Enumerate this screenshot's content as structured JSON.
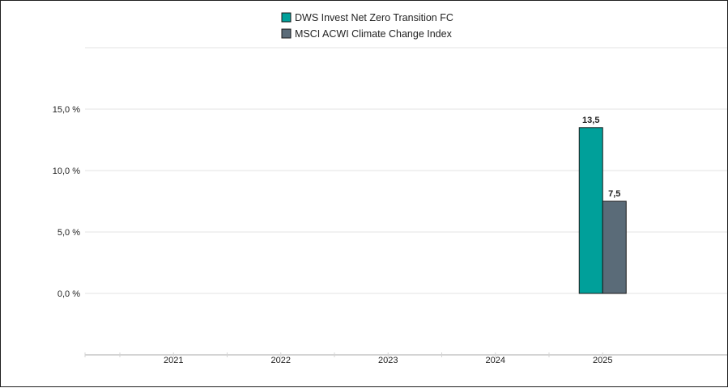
{
  "chart_data": {
    "type": "bar",
    "categories": [
      "2021",
      "2022",
      "2023",
      "2024",
      "2025"
    ],
    "series": [
      {
        "name": "DWS Invest Net Zero Transition FC",
        "color": "#00A09A",
        "values": [
          null,
          null,
          null,
          null,
          13.5
        ],
        "value_labels": [
          "",
          "",
          "",
          "",
          "13,5"
        ]
      },
      {
        "name": "MSCI ACWI Climate Change Index",
        "color": "#5A6B78",
        "values": [
          null,
          null,
          null,
          null,
          7.5
        ],
        "value_labels": [
          "",
          "",
          "",
          "",
          "7,5"
        ]
      }
    ],
    "y_ticks": [
      {
        "value": 0,
        "label": "0,0 %"
      },
      {
        "value": 5,
        "label": "5,0 %"
      },
      {
        "value": 10,
        "label": "10,0 %"
      },
      {
        "value": 15,
        "label": "15,0 %"
      }
    ],
    "ylim": [
      -5,
      20
    ],
    "title": "",
    "xlabel": "",
    "ylabel": "",
    "grid": true,
    "legend_position": "top-center"
  }
}
